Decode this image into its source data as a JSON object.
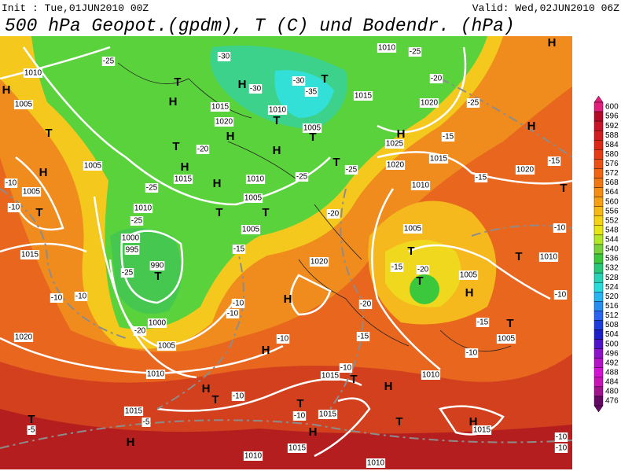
{
  "header": {
    "init": "Init : Tue,01JUN2010 00Z",
    "valid": "Valid: Wed,02JUN2010 06Z",
    "title": "500 hPa Geopot.(gpdm), T (C) und Bodendr. (hPa)"
  },
  "colorbar": {
    "levels": [
      600,
      596,
      592,
      588,
      584,
      580,
      576,
      572,
      568,
      564,
      560,
      556,
      552,
      548,
      544,
      540,
      536,
      532,
      528,
      524,
      520,
      516,
      512,
      508,
      504,
      500,
      496,
      492,
      488,
      484,
      480,
      476
    ],
    "colors": [
      "#e0207a",
      "#b40a28",
      "#c81428",
      "#d21e1e",
      "#dc2814",
      "#e63c14",
      "#eb5014",
      "#f06414",
      "#f07814",
      "#f58c14",
      "#f5a014",
      "#f5b914",
      "#f5d214",
      "#e6e614",
      "#b4e628",
      "#78d23c",
      "#3cc83c",
      "#28c878",
      "#28d2b4",
      "#28dcdc",
      "#28b4f0",
      "#288cf0",
      "#2864f0",
      "#1e3cdc",
      "#1e1ec8",
      "#5014c8",
      "#8c14c8",
      "#b414c8",
      "#d214d2",
      "#c814b4",
      "#a0148c",
      "#640a64"
    ]
  },
  "map_labels": [
    "T",
    "H",
    "1010",
    "1005",
    "-25",
    "-30",
    "H",
    "-30",
    "-30",
    "-35",
    "T",
    "1015",
    "T",
    "H",
    "1015",
    "1020",
    "H",
    "T",
    "1010",
    "1005",
    "T",
    "H",
    "-20",
    "T",
    "H",
    "1015",
    "-25",
    "H",
    "1010",
    "-25",
    "1005",
    "T",
    "T",
    "1010",
    "-25",
    "1005",
    "-15",
    "1000",
    "995",
    "-25",
    "990",
    "T",
    "1000",
    "-20",
    "1005",
    "1010",
    "1005",
    "H",
    "-10",
    "1005",
    "-10",
    "T",
    "1015",
    "-10",
    "-10",
    "1020",
    "T",
    "-5",
    "H",
    "1015",
    "-5",
    "H",
    "T",
    "-10",
    "1010",
    "1010",
    "T",
    "-10",
    "1015",
    "H",
    "1015",
    "T",
    "H",
    "1015",
    "-10",
    "-10",
    "H",
    "-10",
    "1010",
    "1015",
    "-10",
    "T",
    "H",
    "-10",
    "-15",
    "-20",
    "H",
    "-10",
    "-10",
    "1020",
    "-20",
    "-25",
    "1020",
    "H",
    "1025",
    "1015",
    "1010",
    "-20",
    "1020",
    "-25",
    "-25",
    "1010",
    "T",
    "H",
    "-15",
    "1020",
    "-15",
    "-15",
    "T",
    "-10",
    "1005",
    "T",
    "-15",
    "-20",
    "T",
    "1005",
    "H",
    "T",
    "1010",
    "-10",
    "-15",
    "T",
    "1005",
    "H"
  ]
}
